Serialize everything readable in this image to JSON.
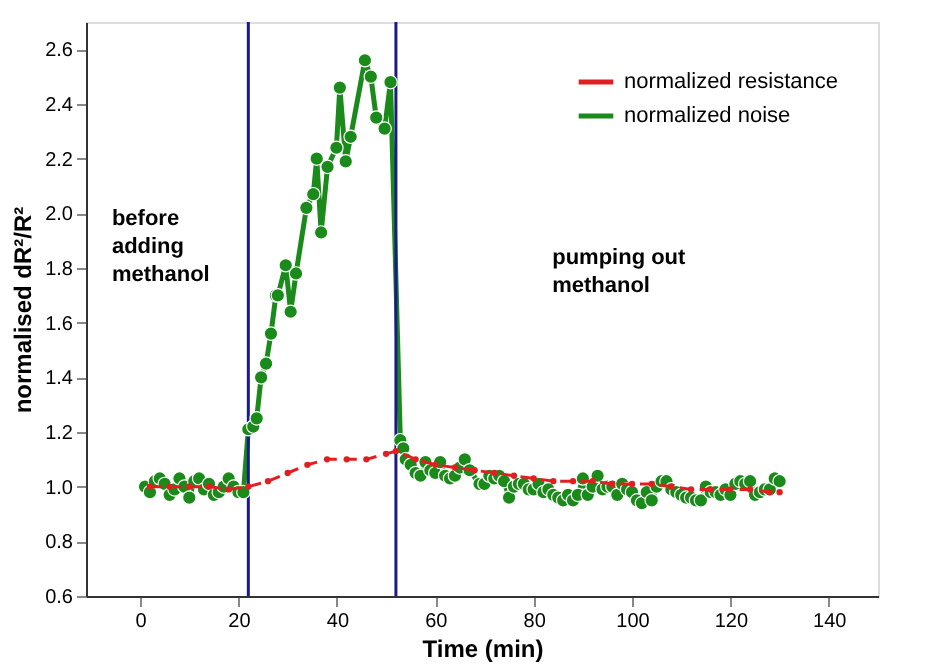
{
  "chart_data": {
    "type": "line",
    "xlabel": "Time (min)",
    "ylabel": "normalised dR²/R²",
    "xlim": [
      -11,
      150
    ],
    "xticks": [
      0,
      20,
      40,
      60,
      80,
      100,
      120,
      140
    ],
    "ylim": [
      0.6,
      2.7
    ],
    "yticks": [
      {
        "value": 0.6,
        "label": "0.6"
      },
      {
        "value": 0.8,
        "label": "0.8"
      },
      {
        "value": 1.0,
        "label": "1.0"
      },
      {
        "value": 1.2,
        "label": "1.2"
      },
      {
        "value": 1.4,
        "label": "1.4"
      },
      {
        "value": 1.6,
        "label": "1.6"
      },
      {
        "value": 1.8,
        "label": "1.8"
      },
      {
        "value": 2.0,
        "label": "2.0"
      },
      {
        "value": 2.2,
        "label": "2.2"
      },
      {
        "value": 2.4,
        "label": "2.4"
      },
      {
        "value": 2.6,
        "label": "2.6"
      }
    ],
    "grid": false,
    "legend": "top right",
    "annotations": [
      "before adding methanol",
      "pumping out methanol"
    ],
    "ref_lines": [
      {
        "axis": "x",
        "value": 22,
        "color": "#1a1a8c"
      },
      {
        "axis": "x",
        "value": 52,
        "color": "#1a1a8c"
      }
    ],
    "series": [
      {
        "name": "normalized resistance",
        "color": "#e02020",
        "marker": "circle",
        "line_style": "dashed",
        "x": [
          2,
          6,
          10,
          14,
          18,
          22,
          26,
          30,
          34,
          38,
          42,
          46,
          50,
          52,
          56,
          60,
          64,
          68,
          72,
          76,
          80,
          84,
          88,
          92,
          96,
          100,
          104,
          108,
          112,
          116,
          120,
          124,
          128,
          130
        ],
        "values": [
          1.0,
          1.0,
          1.0,
          1.0,
          0.99,
          1.0,
          1.02,
          1.05,
          1.08,
          1.1,
          1.1,
          1.1,
          1.12,
          1.13,
          1.1,
          1.08,
          1.07,
          1.06,
          1.05,
          1.04,
          1.03,
          1.02,
          1.02,
          1.02,
          1.01,
          1.01,
          1.01,
          1.0,
          0.99,
          0.99,
          0.99,
          0.99,
          0.98,
          0.98
        ]
      },
      {
        "name": "normalized noise",
        "color": "#1a8a1a",
        "marker": "circle",
        "line_style": "solid",
        "x": [
          1,
          2,
          3,
          4,
          5,
          6,
          7,
          8,
          9,
          10,
          11,
          12,
          13,
          14,
          15,
          16,
          17,
          18,
          19,
          20,
          21,
          22,
          23,
          23.7,
          24.6,
          25.6,
          26.6,
          27.6,
          28,
          29.6,
          30.6,
          31.7,
          33.8,
          35.2,
          35.9,
          36.8,
          38.1,
          39.9,
          40.6,
          41.8,
          42.8,
          45.7,
          46.9,
          48,
          49.7,
          50.9,
          52.9,
          53.5,
          54,
          55,
          56,
          57,
          58,
          59,
          60,
          61,
          62,
          63,
          64,
          65,
          66,
          67,
          69,
          70,
          71,
          72,
          73,
          74,
          75,
          76,
          77,
          78,
          79,
          80,
          81,
          82,
          83,
          84,
          85,
          86,
          87,
          88,
          89,
          90,
          91,
          92,
          93,
          94,
          95,
          96,
          97,
          98,
          99,
          100,
          101,
          102,
          103,
          104,
          105,
          106,
          107,
          108,
          109,
          110,
          111,
          112,
          113,
          114,
          115,
          116,
          117,
          118,
          119,
          120,
          121,
          122,
          123,
          124,
          125,
          126,
          127,
          128,
          129,
          130
        ],
        "values": [
          1.0,
          0.98,
          1.02,
          1.03,
          1.01,
          0.97,
          0.99,
          1.03,
          1.0,
          0.96,
          1.02,
          1.03,
          0.99,
          1.01,
          0.97,
          0.98,
          1.0,
          1.03,
          1.0,
          0.98,
          0.98,
          1.21,
          1.22,
          1.25,
          1.4,
          1.45,
          1.56,
          1.7,
          1.7,
          1.81,
          1.64,
          1.78,
          2.02,
          2.07,
          2.2,
          1.93,
          2.17,
          2.24,
          2.46,
          2.19,
          2.28,
          2.56,
          2.5,
          2.35,
          2.31,
          2.48,
          1.17,
          1.14,
          1.1,
          1.08,
          1.05,
          1.04,
          1.09,
          1.06,
          1.05,
          1.09,
          1.04,
          1.03,
          1.04,
          1.07,
          1.1,
          1.06,
          1.01,
          1.01,
          1.04,
          1.03,
          1.04,
          1.02,
          0.96,
          1.0,
          1.01,
          1.01,
          0.99,
          0.99,
          1.01,
          0.98,
          0.99,
          0.97,
          0.96,
          0.95,
          0.97,
          0.95,
          0.97,
          1.03,
          0.97,
          1.0,
          1.04,
          0.99,
          1.0,
          1.0,
          0.97,
          1.01,
          0.99,
          0.98,
          0.95,
          0.94,
          0.98,
          0.95,
          1.0,
          1.02,
          1.02,
          0.99,
          0.98,
          0.97,
          0.96,
          0.96,
          0.95,
          0.95,
          1.0,
          0.98,
          0.98,
          0.97,
          0.99,
          0.97,
          1.01,
          1.02,
          1.01,
          1.02,
          0.97,
          0.98,
          0.99,
          0.99,
          1.03,
          1.02
        ]
      }
    ]
  }
}
